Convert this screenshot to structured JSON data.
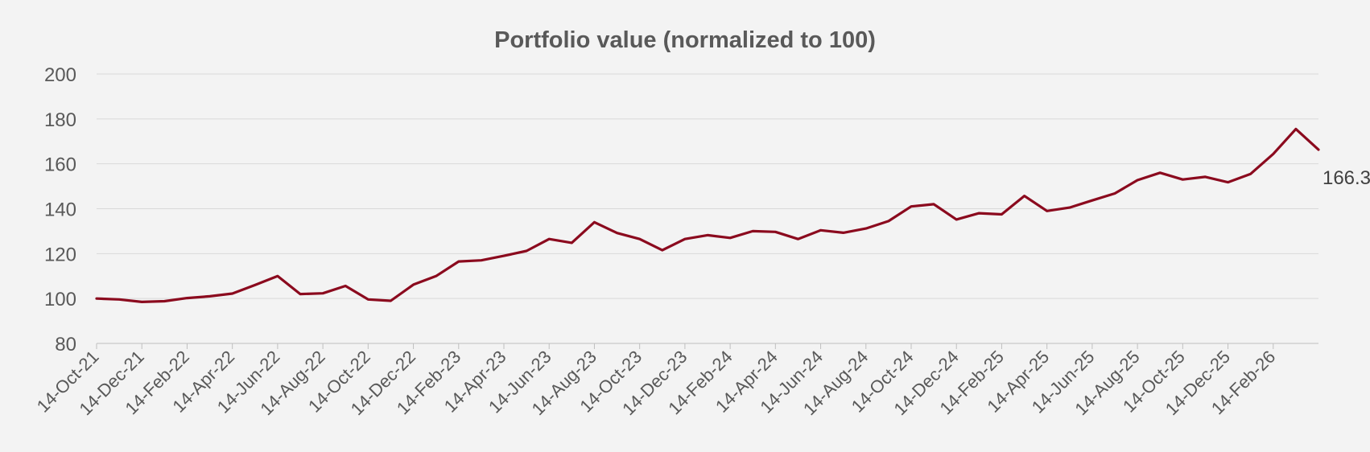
{
  "chart_data": {
    "type": "line",
    "title": "Portfolio value (normalized to 100)",
    "xlabel": "",
    "ylabel": "",
    "ylim": [
      80,
      200
    ],
    "yticks": [
      80,
      100,
      120,
      140,
      160,
      180,
      200
    ],
    "grid": true,
    "x_tick_labels": [
      "14-Oct-21",
      "14-Dec-21",
      "14-Feb-22",
      "14-Apr-22",
      "14-Jun-22",
      "14-Aug-22",
      "14-Oct-22",
      "14-Dec-22",
      "14-Feb-23",
      "14-Apr-23",
      "14-Jun-23",
      "14-Aug-23",
      "14-Oct-23",
      "14-Dec-23",
      "14-Feb-24",
      "14-Apr-24",
      "14-Jun-24",
      "14-Aug-24",
      "14-Oct-24",
      "14-Dec-24",
      "14-Feb-25",
      "14-Apr-25",
      "14-Jun-25",
      "14-Aug-25",
      "14-Oct-25",
      "14-Dec-25",
      "14-Feb-26"
    ],
    "series": [
      {
        "name": "Portfolio value",
        "color": "#8b0a1e",
        "values": [
          100.0,
          99.6,
          98.5,
          98.8,
          100.2,
          101.0,
          102.2,
          106.0,
          110.0,
          102.0,
          102.3,
          105.6,
          99.6,
          99.0,
          106.2,
          110.0,
          116.5,
          117.0,
          119.0,
          121.2,
          126.5,
          124.8,
          134.0,
          129.2,
          126.5,
          121.5,
          126.5,
          128.2,
          127.0,
          130.0,
          129.7,
          126.5,
          130.4,
          129.3,
          131.2,
          134.5,
          141.0,
          142.0,
          135.2,
          138.0,
          137.5,
          145.7,
          139.0,
          140.5,
          143.7,
          146.8,
          152.7,
          156.0,
          153.0,
          154.2,
          151.8,
          155.5,
          164.4,
          175.5,
          166.3
        ]
      }
    ],
    "annotations": [
      {
        "text": "166.3",
        "series": 0,
        "index": 54
      }
    ]
  }
}
